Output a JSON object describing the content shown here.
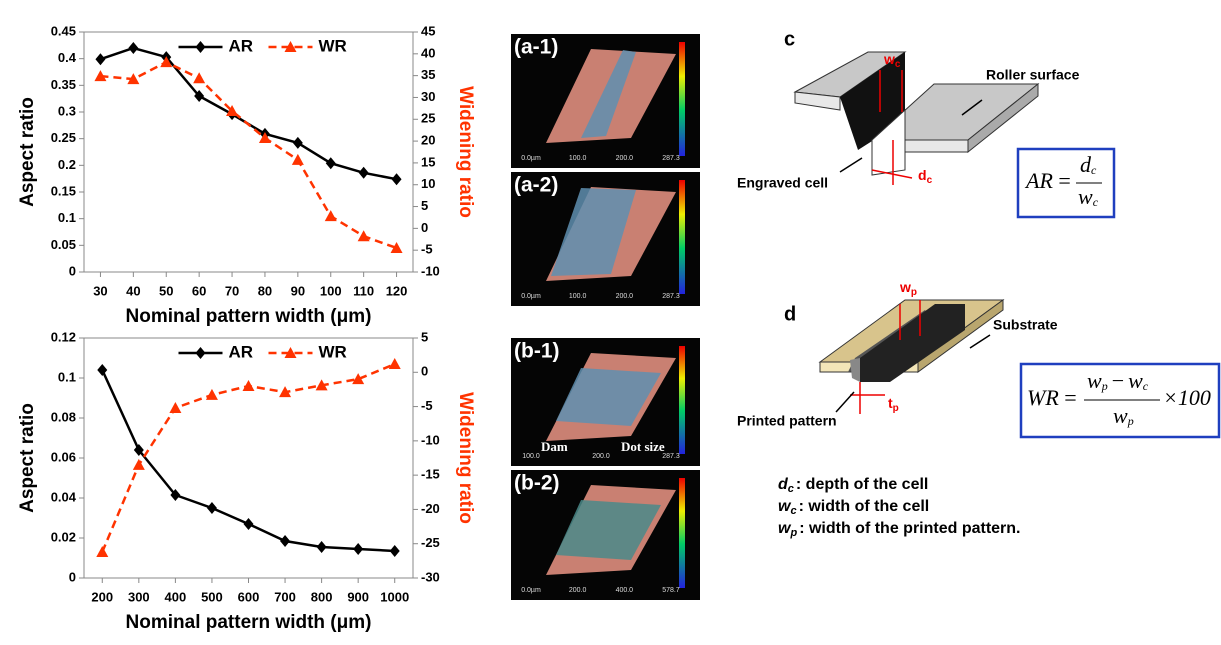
{
  "chart_data": [
    {
      "type": "line",
      "x": [
        30,
        40,
        50,
        60,
        70,
        80,
        90,
        100,
        110,
        120
      ],
      "xlim": [
        25,
        125
      ],
      "xticks": [
        30,
        40,
        50,
        60,
        70,
        80,
        90,
        100,
        110,
        120
      ],
      "xlabel": "Nominal pattern width (μm)",
      "ylabel": "Aspect ratio",
      "y2label": "Widening ratio",
      "ylim": [
        0,
        0.45
      ],
      "yticks": [
        0,
        0.05,
        0.1,
        0.15,
        0.2,
        0.25,
        0.3,
        0.35,
        0.4,
        0.45
      ],
      "y2lim": [
        -10,
        45
      ],
      "y2ticks": [
        -10,
        -5,
        0,
        5,
        10,
        15,
        20,
        25,
        30,
        35,
        40,
        45
      ],
      "legend": "top",
      "series": [
        {
          "name": "AR",
          "color": "#000000",
          "marker": "diamond",
          "dash": "solid",
          "values": [
            0.399,
            0.42,
            0.403,
            0.33,
            0.296,
            0.259,
            0.242,
            0.204,
            0.186,
            0.174
          ]
        },
        {
          "name": "WR",
          "color": "#ff3300",
          "marker": "triangle",
          "dash": "dashed",
          "axis": "y2",
          "values": [
            34.9,
            34.2,
            38.1,
            34.4,
            26.9,
            20.7,
            15.7,
            2.8,
            -1.8,
            -4.5
          ]
        }
      ]
    },
    {
      "type": "line",
      "x": [
        200,
        300,
        400,
        500,
        600,
        700,
        800,
        900,
        1000
      ],
      "xlim": [
        150,
        1050
      ],
      "xticks": [
        200,
        300,
        400,
        500,
        600,
        700,
        800,
        900,
        1000
      ],
      "xlabel": "Nominal pattern width (μm)",
      "ylabel": "Aspect ratio",
      "y2label": "Widening ratio",
      "ylim": [
        0,
        0.12
      ],
      "yticks": [
        0,
        0.02,
        0.04,
        0.06,
        0.08,
        0.1,
        0.12
      ],
      "y2lim": [
        -30,
        5
      ],
      "y2ticks": [
        -30,
        -25,
        -20,
        -15,
        -10,
        -5,
        0,
        5
      ],
      "legend": "top",
      "series": [
        {
          "name": "AR",
          "color": "#000000",
          "marker": "diamond",
          "dash": "solid",
          "values": [
            0.104,
            0.064,
            0.0415,
            0.035,
            0.027,
            0.0185,
            0.0155,
            0.0145,
            0.0135
          ]
        },
        {
          "name": "WR",
          "color": "#ff3300",
          "marker": "triangle",
          "dash": "dashed",
          "axis": "y2",
          "values": [
            -26.2,
            -13.5,
            -5.2,
            -3.3,
            -2,
            -2.9,
            -1.9,
            -1,
            1.2
          ]
        }
      ]
    }
  ],
  "thumbnails": [
    {
      "label": "(a-1)",
      "ticks": [
        "0.0µm",
        "100.0",
        "200.0",
        "287.3"
      ]
    },
    {
      "label": "(a-2)",
      "ticks": [
        "0.0µm",
        "100.0",
        "200.0",
        "287.3"
      ]
    },
    {
      "label": "(b-1)",
      "ticks": [
        "100.0",
        "200.0",
        "287.3"
      ],
      "notes": [
        "Dam",
        "Dot size"
      ]
    },
    {
      "label": "(b-2)",
      "ticks": [
        "0.0µm",
        "200.0",
        "400.0",
        "578.7"
      ]
    }
  ],
  "diagram_c": {
    "label": "c",
    "roller": "Roller surface",
    "cell": "Engraved cell",
    "w": "w",
    "w_sub": "c",
    "d": "d",
    "d_sub": "c",
    "formula": {
      "lhs": "AR",
      "eq": "=",
      "num": "d",
      "num_sub": "c",
      "den": "w",
      "den_sub": "c"
    }
  },
  "diagram_d": {
    "label": "d",
    "substrate": "Substrate",
    "pattern": "Printed pattern",
    "w": "w",
    "w_sub": "p",
    "t": "t",
    "t_sub": "p",
    "formula": {
      "lhs": "WR",
      "eq": "=",
      "n1": "w",
      "n1_sub": "p",
      "minus": "−",
      "n2": "w",
      "n2_sub": "c",
      "times": "×100",
      "den": "w",
      "den_sub": "p"
    }
  },
  "definitions": [
    {
      "sym": "d",
      "sub": "c",
      "text": ": depth of the cell"
    },
    {
      "sym": "w",
      "sub": "c",
      "text": ": width of the cell"
    },
    {
      "sym": "w",
      "sub": "p",
      "text": ": width of the printed pattern."
    }
  ]
}
